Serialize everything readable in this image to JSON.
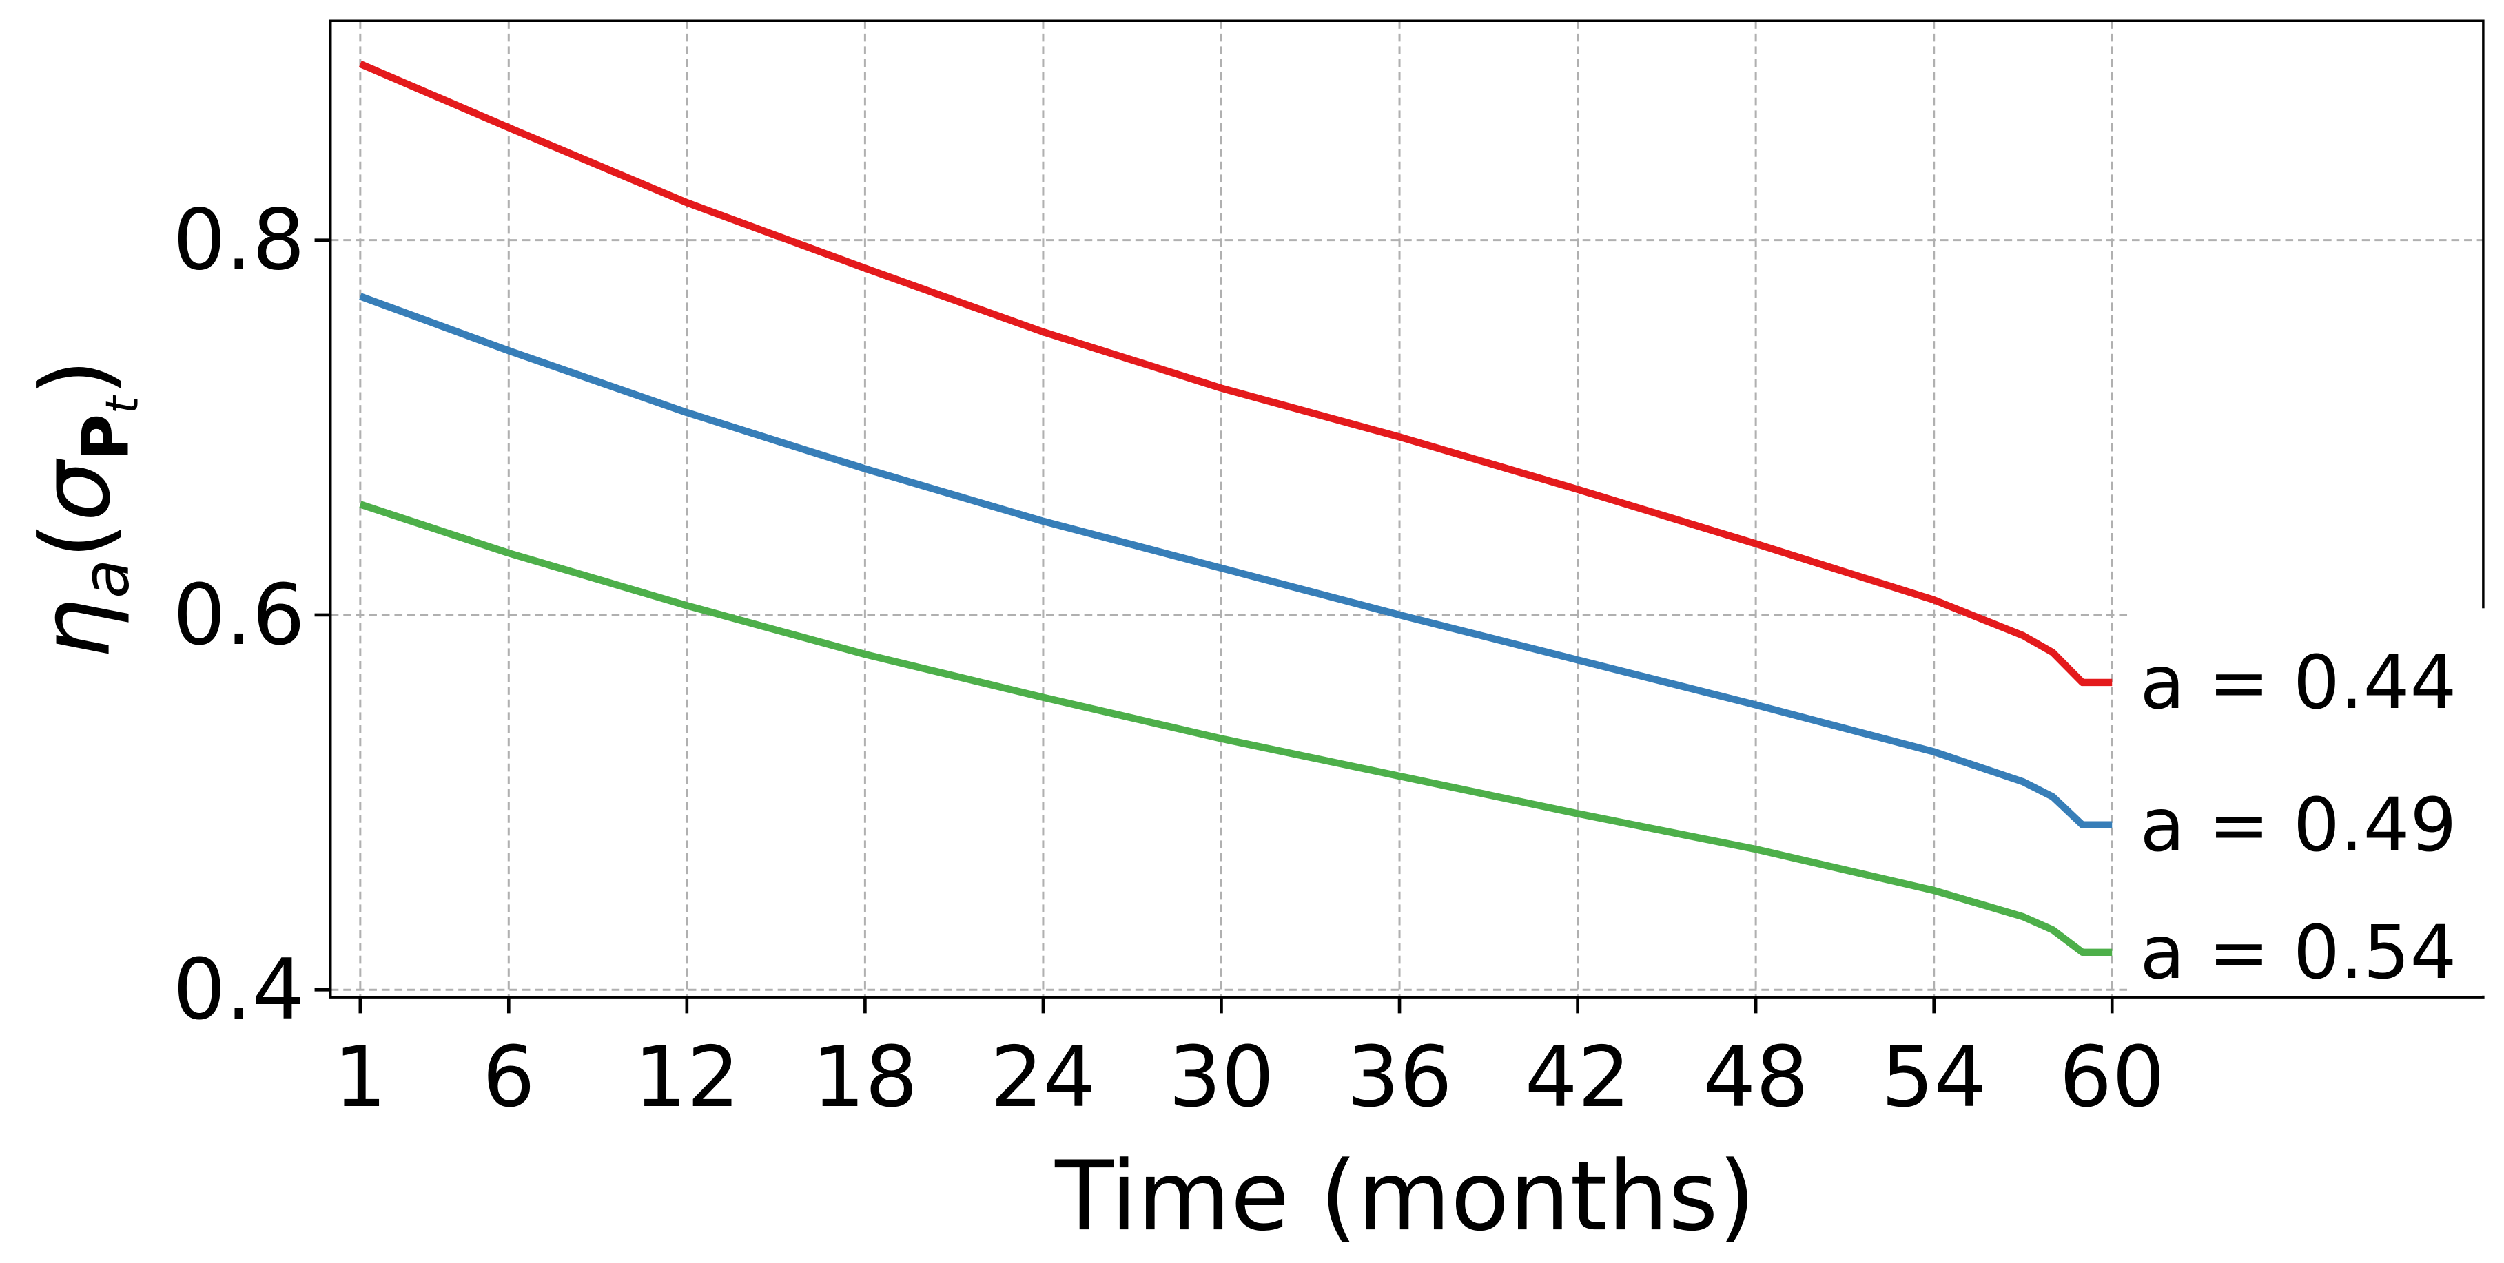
{
  "chart_data": {
    "type": "line",
    "xlabel": "Time (months)",
    "ylabel": [
      "η",
      "a",
      "(",
      "σ",
      "P",
      "t",
      ")"
    ],
    "x": [
      1,
      6,
      12,
      18,
      24,
      30,
      36,
      42,
      48,
      54,
      57,
      58,
      59,
      60
    ],
    "series": [
      {
        "name": "a = 0.44",
        "color": "#e41a1c",
        "values": [
          0.894,
          0.86,
          0.82,
          0.785,
          0.751,
          0.721,
          0.695,
          0.667,
          0.638,
          0.608,
          0.589,
          0.58,
          0.564,
          0.564
        ]
      },
      {
        "name": "a = 0.49",
        "color": "#377eb8",
        "values": [
          0.77,
          0.741,
          0.708,
          0.678,
          0.65,
          0.625,
          0.6,
          0.576,
          0.552,
          0.527,
          0.511,
          0.503,
          0.488,
          0.488
        ]
      },
      {
        "name": "a = 0.54",
        "color": "#4daf4a",
        "values": [
          0.659,
          0.633,
          0.605,
          0.579,
          0.556,
          0.534,
          0.514,
          0.494,
          0.475,
          0.453,
          0.439,
          0.432,
          0.42,
          0.42
        ]
      }
    ],
    "xlim": [
      0,
      72.5
    ],
    "xticks": [
      1,
      6,
      12,
      18,
      24,
      30,
      36,
      42,
      48,
      54,
      60
    ],
    "ylim": [
      0.396,
      0.917
    ],
    "yticks": [
      0.4,
      0.6,
      0.8
    ],
    "grid": true
  }
}
